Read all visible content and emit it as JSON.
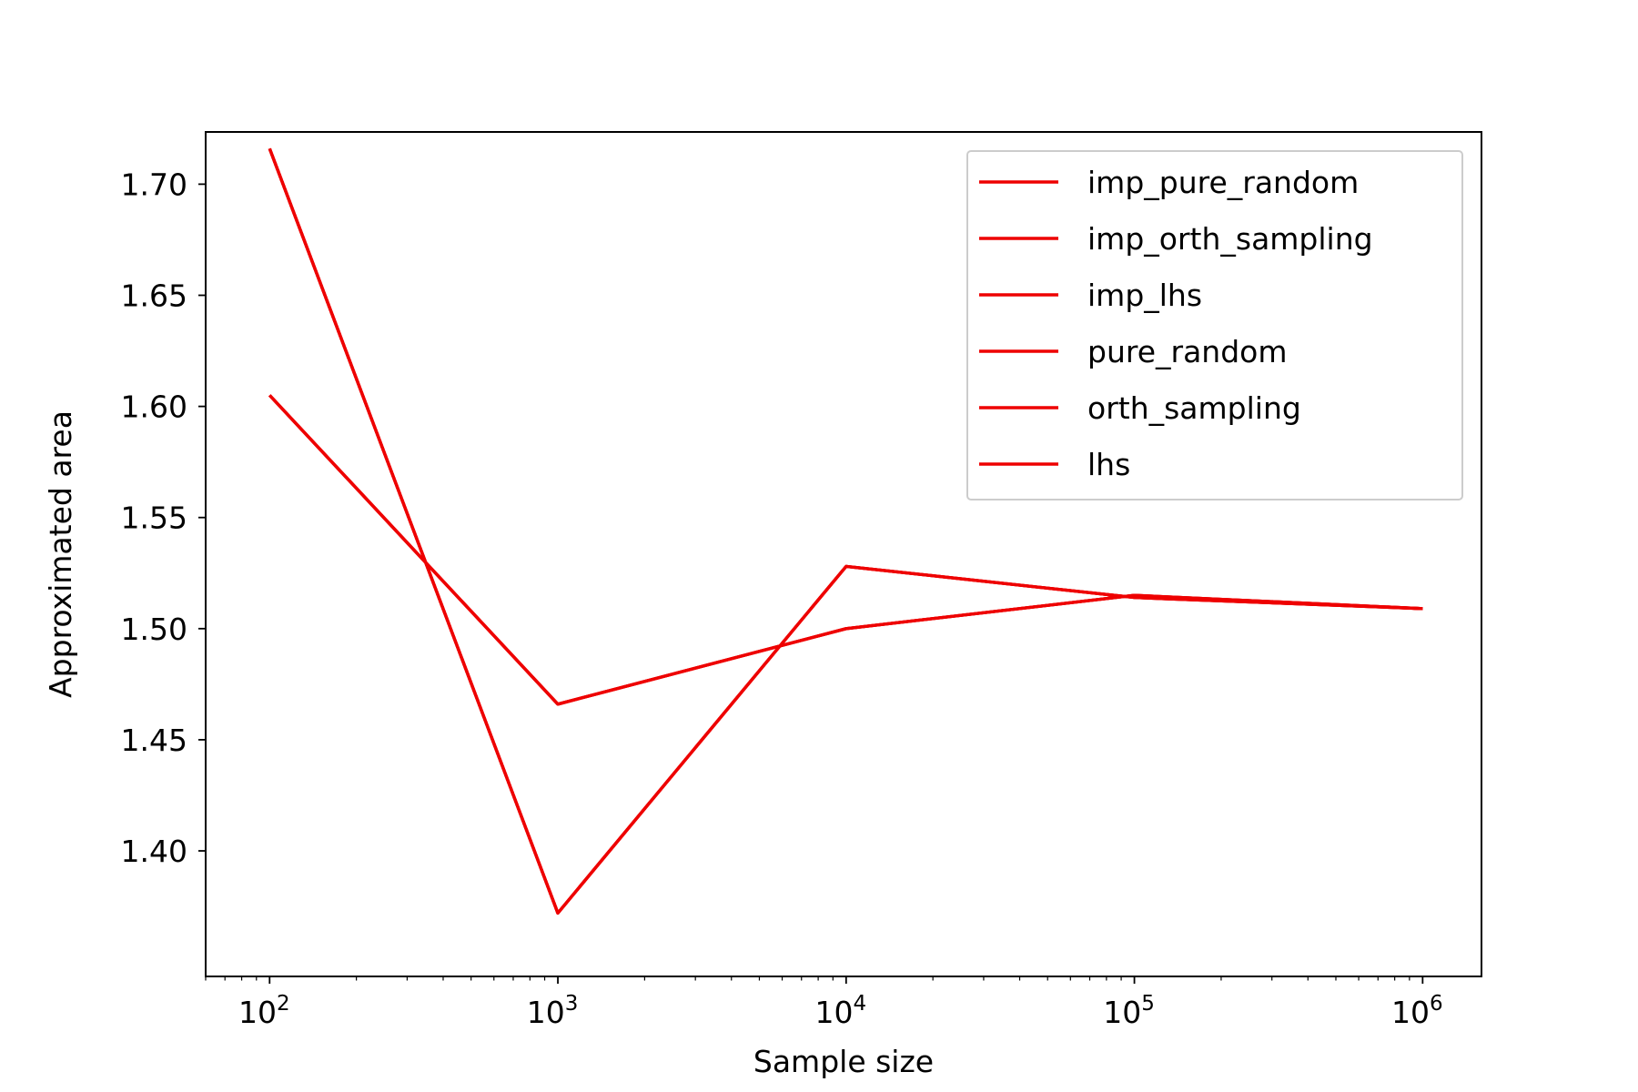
{
  "chart_data": {
    "type": "line",
    "xscale": "log",
    "xlabel": "Sample size",
    "ylabel": "Approximated area",
    "xlim": [
      60,
      1600000
    ],
    "ylim": [
      1.3435,
      1.7235
    ],
    "x": [
      100,
      1000,
      10000,
      100000,
      1000000
    ],
    "x_ticks": [
      {
        "value": 100,
        "base": "10",
        "exp": "2"
      },
      {
        "value": 1000,
        "base": "10",
        "exp": "3"
      },
      {
        "value": 10000,
        "base": "10",
        "exp": "4"
      },
      {
        "value": 100000,
        "base": "10",
        "exp": "5"
      },
      {
        "value": 1000000,
        "base": "10",
        "exp": "6"
      }
    ],
    "y_ticks": [
      "1.40",
      "1.45",
      "1.50",
      "1.55",
      "1.60",
      "1.65",
      "1.70"
    ],
    "grid": false,
    "legend_position": "top-right",
    "series": [
      {
        "name": "imp_pure_random",
        "color": "#ee0000",
        "values": [
          1.716,
          1.372,
          1.528,
          1.514,
          1.509
        ]
      },
      {
        "name": "imp_orth_sampling",
        "color": "#ee0000",
        "values": [
          1.716,
          1.372,
          1.528,
          1.514,
          1.509
        ]
      },
      {
        "name": "imp_lhs",
        "color": "#ee0000",
        "values": [
          1.716,
          1.372,
          1.528,
          1.514,
          1.509
        ]
      },
      {
        "name": "pure_random",
        "color": "#ee0000",
        "values": [
          1.605,
          1.466,
          1.5,
          1.515,
          1.509
        ]
      },
      {
        "name": "orth_sampling",
        "color": "#ee0000",
        "values": [
          1.605,
          1.466,
          1.5,
          1.515,
          1.509
        ]
      },
      {
        "name": "lhs",
        "color": "#ee0000",
        "values": [
          1.605,
          1.466,
          1.5,
          1.515,
          1.509
        ]
      }
    ]
  }
}
